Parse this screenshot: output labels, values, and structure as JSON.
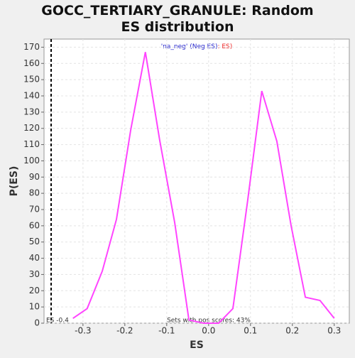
{
  "chart_data": {
    "type": "line",
    "title": "GOCC_TERTIARY_GRANULE: Random ES distribution",
    "x_label": "ES",
    "y_label": "P(ES)",
    "legend_left": "'na_neg' (Neg ES)",
    "legend_right": ": ES)",
    "note": "Sets with pos scores: 43%",
    "es_marker": {
      "value": -0.376,
      "label": "ES -0.4"
    },
    "x": [
      -0.324,
      -0.29,
      -0.254,
      -0.22,
      -0.186,
      -0.151,
      -0.117,
      -0.081,
      -0.047,
      -0.012,
      0.024,
      0.058,
      0.093,
      0.127,
      0.163,
      0.197,
      0.231,
      0.266,
      0.3
    ],
    "series": [
      {
        "name": "ES",
        "color": "#ff44ff",
        "values": [
          3,
          9,
          32,
          64,
          119,
          167,
          113,
          62,
          2,
          0,
          0,
          9,
          75,
          143,
          112,
          60,
          16,
          14,
          3
        ]
      }
    ],
    "xlim": [
      -0.393,
      0.336
    ],
    "xticks": [
      -0.3,
      -0.2,
      -0.1,
      {
        "value": 0,
        "label": "0.0"
      },
      0.1,
      0.2,
      0.3
    ],
    "ylim": [
      0,
      175
    ],
    "yticks": [
      0,
      10,
      20,
      30,
      40,
      50,
      60,
      70,
      80,
      90,
      100,
      110,
      120,
      130,
      140,
      150,
      160,
      170
    ],
    "grid": true
  }
}
